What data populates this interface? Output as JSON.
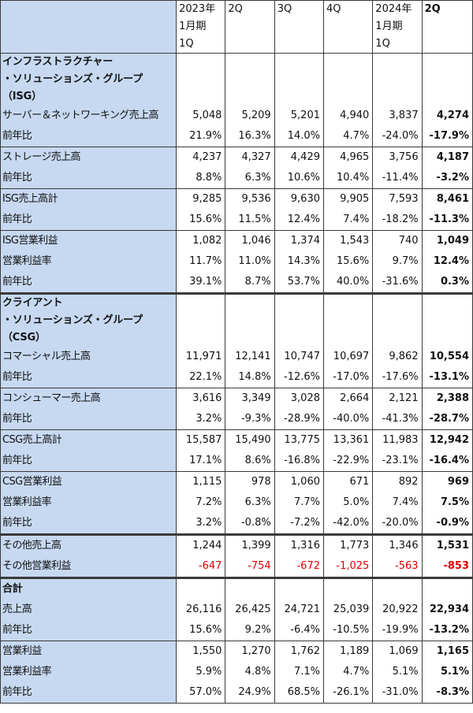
{
  "header": {
    "blank": "",
    "cols": [
      {
        "line1": "2023年",
        "line2": "1月期",
        "line3": "1Q"
      },
      {
        "line1": "2Q",
        "line2": "",
        "line3": ""
      },
      {
        "line1": "3Q",
        "line2": "",
        "line3": ""
      },
      {
        "line1": "4Q",
        "line2": "",
        "line3": ""
      },
      {
        "line1": "2024年",
        "line2": "1月期",
        "line3": "1Q"
      },
      {
        "line1": "2Q",
        "line2": "",
        "line3": ""
      }
    ]
  },
  "isg": {
    "title1": "インフラストラクチャー",
    "title2": "・ソリューションズ・グループ",
    "title3": "（ISG）"
  },
  "csg": {
    "title1": "クライアント",
    "title2": "・ソリューションズ・グループ",
    "title3": "（CSG）"
  },
  "total": {
    "title": "合計"
  },
  "rows": [
    {
      "label": "サーバー＆ネットワーキング売上高",
      "v": [
        "5,048",
        "5,209",
        "5,201",
        "4,940",
        "3,837",
        "4,274"
      ]
    },
    {
      "label": "前年比",
      "v": [
        "21.9%",
        "16.3%",
        "14.0%",
        "4.7%",
        "-24.0%",
        "-17.9%"
      ]
    },
    {
      "label": "ストレージ売上高",
      "v": [
        "4,237",
        "4,327",
        "4,429",
        "4,965",
        "3,756",
        "4,187"
      ]
    },
    {
      "label": "前年比",
      "v": [
        "8.8%",
        "6.3%",
        "10.6%",
        "10.4%",
        "-11.4%",
        "-3.2%"
      ]
    },
    {
      "label": "ISG売上高計",
      "v": [
        "9,285",
        "9,536",
        "9,630",
        "9,905",
        "7,593",
        "8,461"
      ]
    },
    {
      "label": "前年比",
      "v": [
        "15.6%",
        "11.5%",
        "12.4%",
        "7.4%",
        "-18.2%",
        "-11.3%"
      ]
    },
    {
      "label": "ISG営業利益",
      "v": [
        "1,082",
        "1,046",
        "1,374",
        "1,543",
        "740",
        "1,049"
      ]
    },
    {
      "label": "営業利益率",
      "v": [
        "11.7%",
        "11.0%",
        "14.3%",
        "15.6%",
        "9.7%",
        "12.4%"
      ]
    },
    {
      "label": "前年比",
      "v": [
        "39.1%",
        "8.7%",
        "53.7%",
        "40.0%",
        "-31.6%",
        "0.3%"
      ]
    },
    {
      "label": "コマーシャル売上高",
      "v": [
        "11,971",
        "12,141",
        "10,747",
        "10,697",
        "9,862",
        "10,554"
      ]
    },
    {
      "label": "前年比",
      "v": [
        "22.1%",
        "14.8%",
        "-12.6%",
        "-17.0%",
        "-17.6%",
        "-13.1%"
      ]
    },
    {
      "label": "コンシューマー売上高",
      "v": [
        "3,616",
        "3,349",
        "3,028",
        "2,664",
        "2,121",
        "2,388"
      ]
    },
    {
      "label": "前年比",
      "v": [
        "3.2%",
        "-9.3%",
        "-28.9%",
        "-40.0%",
        "-41.3%",
        "-28.7%"
      ]
    },
    {
      "label": "CSG売上高計",
      "v": [
        "15,587",
        "15,490",
        "13,775",
        "13,361",
        "11,983",
        "12,942"
      ]
    },
    {
      "label": "前年比",
      "v": [
        "17.1%",
        "8.6%",
        "-16.8%",
        "-22.9%",
        "-23.1%",
        "-16.4%"
      ]
    },
    {
      "label": "CSG営業利益",
      "v": [
        "1,115",
        "978",
        "1,060",
        "671",
        "892",
        "969"
      ]
    },
    {
      "label": "営業利益率",
      "v": [
        "7.2%",
        "6.3%",
        "7.7%",
        "5.0%",
        "7.4%",
        "7.5%"
      ]
    },
    {
      "label": "前年比",
      "v": [
        "3.2%",
        "-0.8%",
        "-7.2%",
        "-42.0%",
        "-20.0%",
        "-0.9%"
      ]
    },
    {
      "label": "その他売上高",
      "v": [
        "1,244",
        "1,399",
        "1,316",
        "1,773",
        "1,346",
        "1,531"
      ]
    },
    {
      "label": "その他営業利益",
      "v": [
        "-647",
        "-754",
        "-672",
        "-1,025",
        "-563",
        "-853"
      ],
      "color": "#e00000"
    },
    {
      "label": "売上高",
      "v": [
        "26,116",
        "26,425",
        "24,721",
        "25,039",
        "20,922",
        "22,934"
      ]
    },
    {
      "label": "前年比",
      "v": [
        "15.6%",
        "9.2%",
        "-6.4%",
        "-10.5%",
        "-19.9%",
        "-13.2%"
      ]
    },
    {
      "label": "営業利益",
      "v": [
        "1,550",
        "1,270",
        "1,762",
        "1,189",
        "1,069",
        "1,165"
      ]
    },
    {
      "label": "営業利益率",
      "v": [
        "5.9%",
        "4.8%",
        "7.1%",
        "4.7%",
        "5.1%",
        "5.1%"
      ]
    },
    {
      "label": "前年比",
      "v": [
        "57.0%",
        "24.9%",
        "68.5%",
        "-26.1%",
        "-31.0%",
        "-8.3%"
      ]
    }
  ]
}
